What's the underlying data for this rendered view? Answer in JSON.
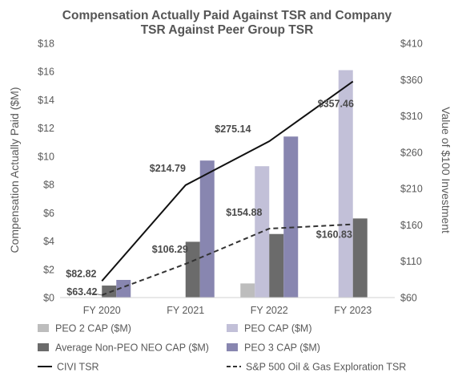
{
  "chart_data": {
    "type": "bar",
    "title_lines": [
      "Compensation Actually Paid Against TSR and Company",
      "TSR Against Peer Group TSR"
    ],
    "ylabel": "Compensation Actually Paid ($M)",
    "y2label": "Value of $100 Investment",
    "categories": [
      "FY 2020",
      "FY 2021",
      "FY 2022",
      "FY 2023"
    ],
    "ylim": [
      0,
      18
    ],
    "y_ticks": [
      0,
      2,
      4,
      6,
      8,
      10,
      12,
      14,
      16,
      18
    ],
    "y_tick_labels": [
      "$0",
      "$2",
      "$4",
      "$6",
      "$8",
      "$10",
      "$12",
      "$14",
      "$16",
      "$18"
    ],
    "y2lim": [
      60,
      410
    ],
    "y2_ticks": [
      60,
      110,
      160,
      210,
      260,
      310,
      360,
      410
    ],
    "y2_tick_labels": [
      "$60",
      "$110",
      "$160",
      "$210",
      "$260",
      "$310",
      "$360",
      "$410"
    ],
    "bar_series": [
      {
        "name": "PEO 2 CAP ($M)",
        "color": "#bdbdbd",
        "values": [
          null,
          null,
          1.0,
          null
        ]
      },
      {
        "name": "PEO CAP ($M)",
        "color": "#c2c0d8",
        "values": [
          null,
          null,
          9.3,
          16.1
        ]
      },
      {
        "name": "Average Non-PEO NEO CAP ($M)",
        "color": "#6b6b6b",
        "values": [
          0.85,
          3.95,
          4.5,
          5.6
        ]
      },
      {
        "name": "PEO 3 CAP ($M)",
        "color": "#8886b0",
        "values": [
          1.25,
          9.7,
          11.4,
          null
        ]
      }
    ],
    "line_series": [
      {
        "name": "CIVI TSR",
        "style": "solid",
        "color": "#111111",
        "values": [
          82.82,
          214.79,
          275.14,
          357.46
        ],
        "labels": [
          "$82.82",
          "$214.79",
          "$275.14",
          "$357.46"
        ]
      },
      {
        "name": "S&P 500 Oil & Gas Exploration TSR",
        "style": "dashed",
        "color": "#333333",
        "values": [
          63.42,
          106.29,
          154.88,
          160.83
        ],
        "labels": [
          "$63.42",
          "$106.29",
          "$154.88",
          "$160.83"
        ]
      }
    ],
    "legend": [
      {
        "label": "PEO 2 CAP ($M)",
        "kind": "box",
        "color": "#bdbdbd"
      },
      {
        "label": "PEO CAP ($M)",
        "kind": "box",
        "color": "#c2c0d8"
      },
      {
        "label": "Average Non-PEO NEO CAP ($M)",
        "kind": "box",
        "color": "#6b6b6b"
      },
      {
        "label": "PEO 3 CAP ($M)",
        "kind": "box",
        "color": "#8886b0"
      },
      {
        "label": "CIVI TSR",
        "kind": "solid",
        "color": "#111111"
      },
      {
        "label": "S&P 500 Oil & Gas Exploration TSR",
        "kind": "dashed",
        "color": "#333333"
      }
    ],
    "legend_placement": "bottom",
    "grid": false
  }
}
